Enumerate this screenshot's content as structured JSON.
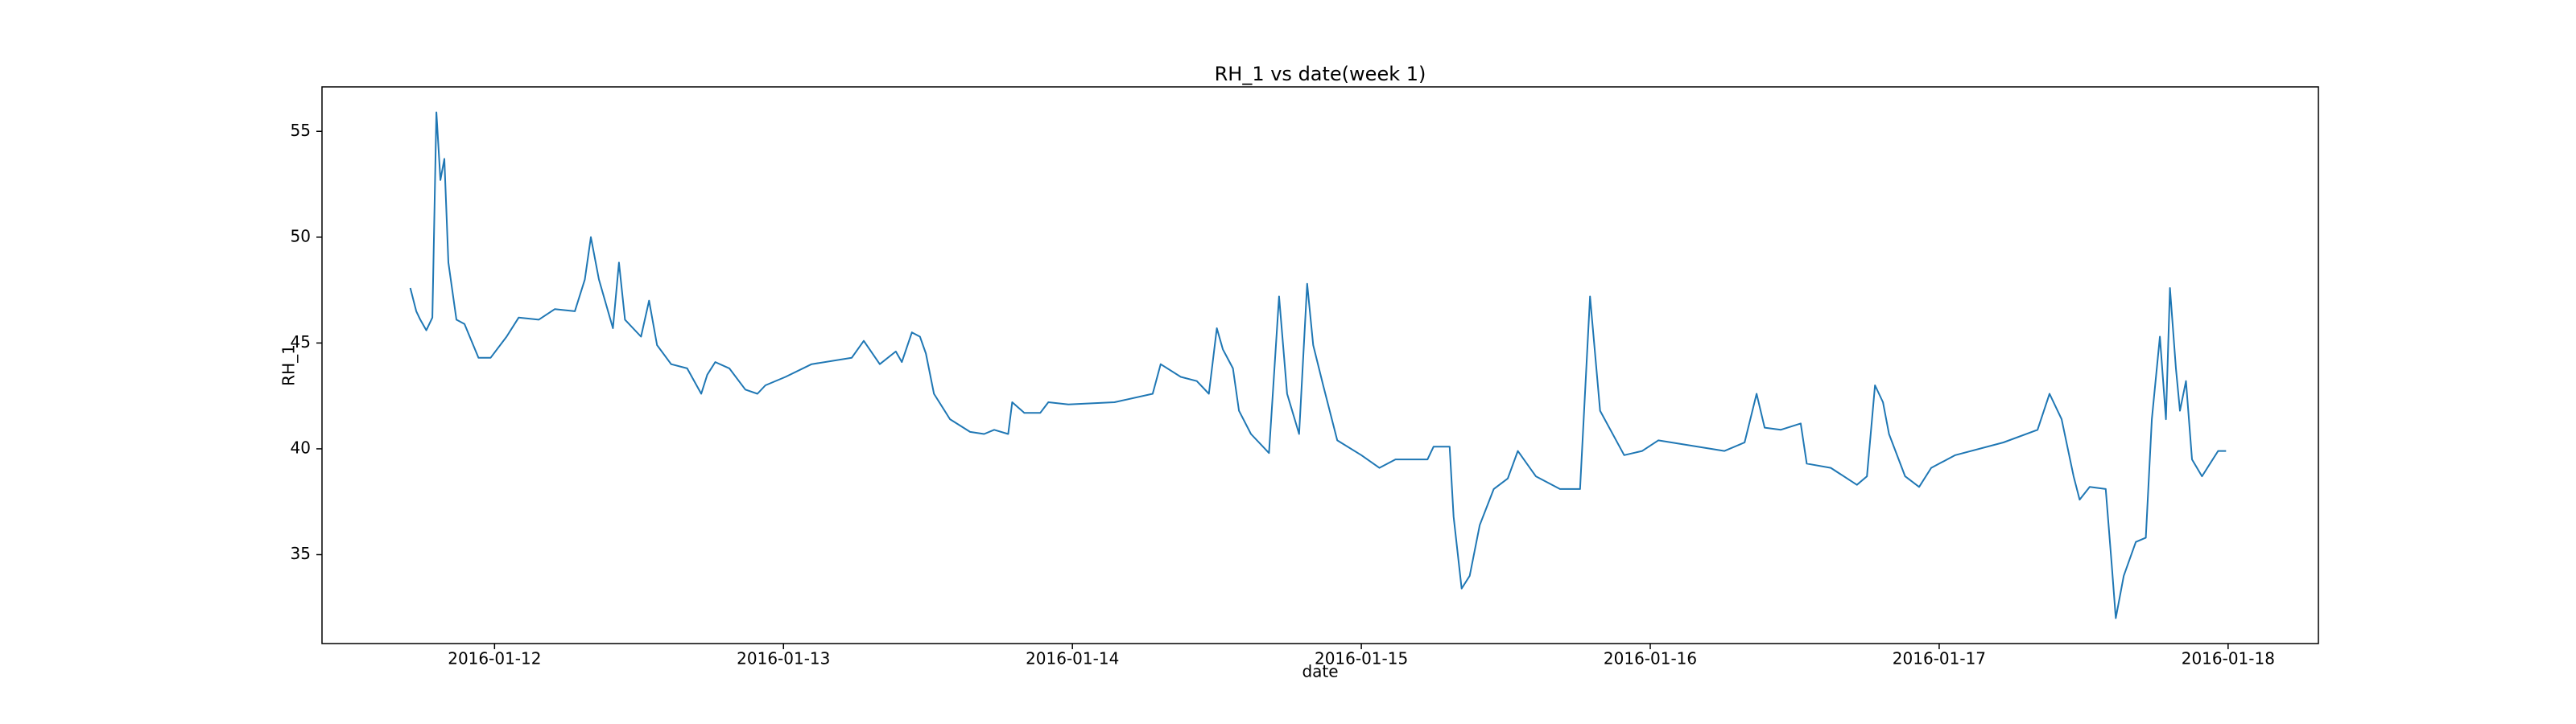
{
  "chart_data": {
    "type": "line",
    "title": "RH_1 vs date(week 1)",
    "x_label": "date",
    "y_label": "RH_1",
    "x": [
      "2016-01-11 17:00",
      "2016-01-11 17:30",
      "2016-01-11 17:50",
      "2016-01-11 18:20",
      "2016-01-11 18:50",
      "2016-01-11 19:10",
      "2016-01-11 19:30",
      "2016-01-11 19:50",
      "2016-01-11 20:10",
      "2016-01-11 20:50",
      "2016-01-11 21:30",
      "2016-01-11 22:40",
      "2016-01-11 23:40",
      "2016-01-12 01:00",
      "2016-01-12 02:00",
      "2016-01-12 03:40",
      "2016-01-12 05:00",
      "2016-01-12 06:40",
      "2016-01-12 07:30",
      "2016-01-12 08:00",
      "2016-01-12 08:40",
      "2016-01-12 09:50",
      "2016-01-12 10:20",
      "2016-01-12 10:50",
      "2016-01-12 12:10",
      "2016-01-12 12:50",
      "2016-01-12 13:30",
      "2016-01-12 14:40",
      "2016-01-12 16:00",
      "2016-01-12 17:10",
      "2016-01-12 17:40",
      "2016-01-12 18:20",
      "2016-01-12 19:30",
      "2016-01-12 20:50",
      "2016-01-12 21:50",
      "2016-01-12 22:30",
      "2016-01-13 00:10",
      "2016-01-13 02:20",
      "2016-01-13 05:40",
      "2016-01-13 06:40",
      "2016-01-13 08:00",
      "2016-01-13 09:20",
      "2016-01-13 09:50",
      "2016-01-13 10:40",
      "2016-01-13 11:20",
      "2016-01-13 11:50",
      "2016-01-13 12:30",
      "2016-01-13 13:50",
      "2016-01-13 15:30",
      "2016-01-13 16:40",
      "2016-01-13 17:30",
      "2016-01-13 18:40",
      "2016-01-13 19:00",
      "2016-01-13 20:00",
      "2016-01-13 21:20",
      "2016-01-13 22:00",
      "2016-01-13 23:40",
      "2016-01-14 03:30",
      "2016-01-14 06:40",
      "2016-01-14 07:20",
      "2016-01-14 09:00",
      "2016-01-14 10:20",
      "2016-01-14 11:20",
      "2016-01-14 12:00",
      "2016-01-14 12:30",
      "2016-01-14 13:20",
      "2016-01-14 13:50",
      "2016-01-14 14:50",
      "2016-01-14 16:20",
      "2016-01-14 17:10",
      "2016-01-14 17:50",
      "2016-01-14 18:50",
      "2016-01-14 19:30",
      "2016-01-14 20:00",
      "2016-01-14 20:50",
      "2016-01-14 22:00",
      "2016-01-15 00:00",
      "2016-01-15 01:30",
      "2016-01-15 02:50",
      "2016-01-15 05:30",
      "2016-01-15 06:00",
      "2016-01-15 07:20",
      "2016-01-15 07:40",
      "2016-01-15 08:20",
      "2016-01-15 09:00",
      "2016-01-15 09:50",
      "2016-01-15 11:00",
      "2016-01-15 12:10",
      "2016-01-15 13:00",
      "2016-01-15 14:30",
      "2016-01-15 16:30",
      "2016-01-15 18:10",
      "2016-01-15 19:00",
      "2016-01-15 19:50",
      "2016-01-15 21:50",
      "2016-01-15 23:20",
      "2016-01-16 00:40",
      "2016-01-16 06:10",
      "2016-01-16 07:50",
      "2016-01-16 08:50",
      "2016-01-16 09:30",
      "2016-01-16 10:50",
      "2016-01-16 12:30",
      "2016-01-16 13:00",
      "2016-01-16 15:00",
      "2016-01-16 17:10",
      "2016-01-16 18:00",
      "2016-01-16 18:40",
      "2016-01-16 19:20",
      "2016-01-16 19:50",
      "2016-01-16 21:10",
      "2016-01-16 22:20",
      "2016-01-16 23:20",
      "2016-01-17 01:20",
      "2016-01-17 05:20",
      "2016-01-17 08:10",
      "2016-01-17 09:10",
      "2016-01-17 10:10",
      "2016-01-17 11:10",
      "2016-01-17 11:40",
      "2016-01-17 12:30",
      "2016-01-17 13:50",
      "2016-01-17 14:20",
      "2016-01-17 14:40",
      "2016-01-17 15:20",
      "2016-01-17 16:20",
      "2016-01-17 17:10",
      "2016-01-17 17:40",
      "2016-01-17 18:20",
      "2016-01-17 18:50",
      "2016-01-17 19:10",
      "2016-01-17 19:40",
      "2016-01-17 20:00",
      "2016-01-17 20:30",
      "2016-01-17 21:00",
      "2016-01-17 21:50",
      "2016-01-17 22:30",
      "2016-01-17 23:10",
      "2016-01-17 23:50"
    ],
    "values": [
      47.6,
      46.5,
      46.1,
      45.6,
      46.2,
      55.9,
      52.7,
      53.7,
      48.8,
      46.1,
      45.9,
      44.3,
      44.3,
      45.3,
      46.2,
      46.1,
      46.6,
      46.5,
      48.0,
      50.0,
      48.0,
      45.7,
      48.8,
      46.1,
      45.3,
      47.0,
      44.9,
      44.0,
      43.8,
      42.6,
      43.5,
      44.1,
      43.8,
      42.8,
      42.6,
      43.0,
      43.4,
      44.0,
      44.3,
      45.1,
      44.0,
      44.6,
      44.1,
      45.5,
      45.3,
      44.5,
      42.6,
      41.4,
      40.8,
      40.7,
      40.9,
      40.7,
      42.2,
      41.7,
      41.7,
      42.2,
      42.1,
      42.2,
      42.6,
      44.0,
      43.4,
      43.2,
      42.6,
      45.7,
      44.7,
      43.8,
      41.8,
      40.7,
      39.8,
      47.2,
      42.6,
      40.7,
      47.8,
      44.9,
      43.0,
      40.4,
      39.7,
      39.1,
      39.5,
      39.5,
      40.1,
      40.1,
      36.8,
      33.4,
      34.0,
      36.4,
      38.1,
      38.6,
      39.9,
      38.7,
      38.1,
      38.1,
      47.2,
      41.8,
      39.7,
      39.9,
      40.4,
      39.9,
      40.3,
      42.6,
      41.0,
      40.9,
      41.2,
      39.3,
      39.1,
      38.3,
      38.7,
      43.0,
      42.2,
      40.7,
      38.7,
      38.2,
      39.1,
      39.7,
      40.3,
      40.9,
      42.6,
      41.4,
      38.7,
      37.6,
      38.2,
      38.1,
      34.5,
      32.0,
      34.0,
      35.6,
      35.8,
      41.4,
      45.3,
      41.4,
      47.6,
      43.8,
      41.8,
      43.2,
      39.5,
      38.7,
      39.3,
      39.9,
      39.9
    ],
    "color": "#1f77b4",
    "xlim": [
      "2016-01-11 09:40",
      "2016-01-18 07:30"
    ],
    "xticks": [
      "2016-01-12",
      "2016-01-13",
      "2016-01-14",
      "2016-01-15",
      "2016-01-16",
      "2016-01-17",
      "2016-01-18"
    ],
    "ylim": [
      30.8,
      57.1
    ],
    "yticks": [
      35,
      40,
      45,
      50,
      55
    ],
    "grid": false
  }
}
